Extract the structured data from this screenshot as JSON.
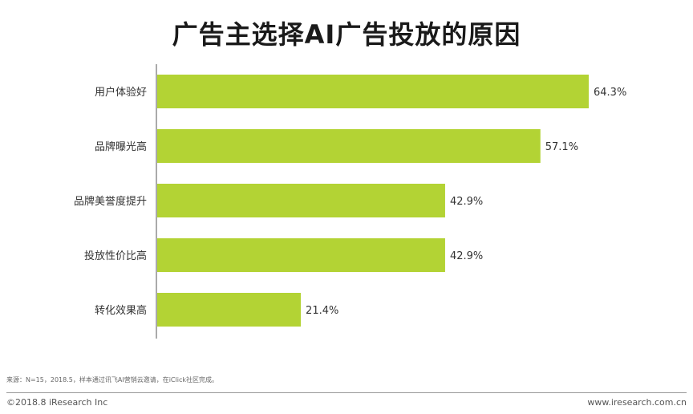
{
  "colors": {
    "bar": "#b3d334",
    "axis": "#555555",
    "text": "#333333"
  },
  "chart_data": {
    "type": "bar",
    "orientation": "horizontal",
    "title": "广告主选择AI广告投放的原因",
    "categories": [
      "用户体验好",
      "品牌曝光高",
      "品牌美誉度提升",
      "投放性价比高",
      "转化效果高"
    ],
    "values": [
      64.3,
      57.1,
      42.9,
      42.9,
      21.4
    ],
    "value_labels": [
      "64.3%",
      "57.1%",
      "42.9%",
      "42.9%",
      "21.4%"
    ],
    "unit": "%",
    "xlim": [
      0,
      64.3
    ],
    "grid": false,
    "legend": "none"
  },
  "footer": {
    "source": "来源：N=15，2018.5，样本通过讯飞AI营销云邀请，在iClick社区完成。",
    "copyright": "©2018.8 iResearch Inc",
    "website": "www.iresearch.com.cn"
  }
}
